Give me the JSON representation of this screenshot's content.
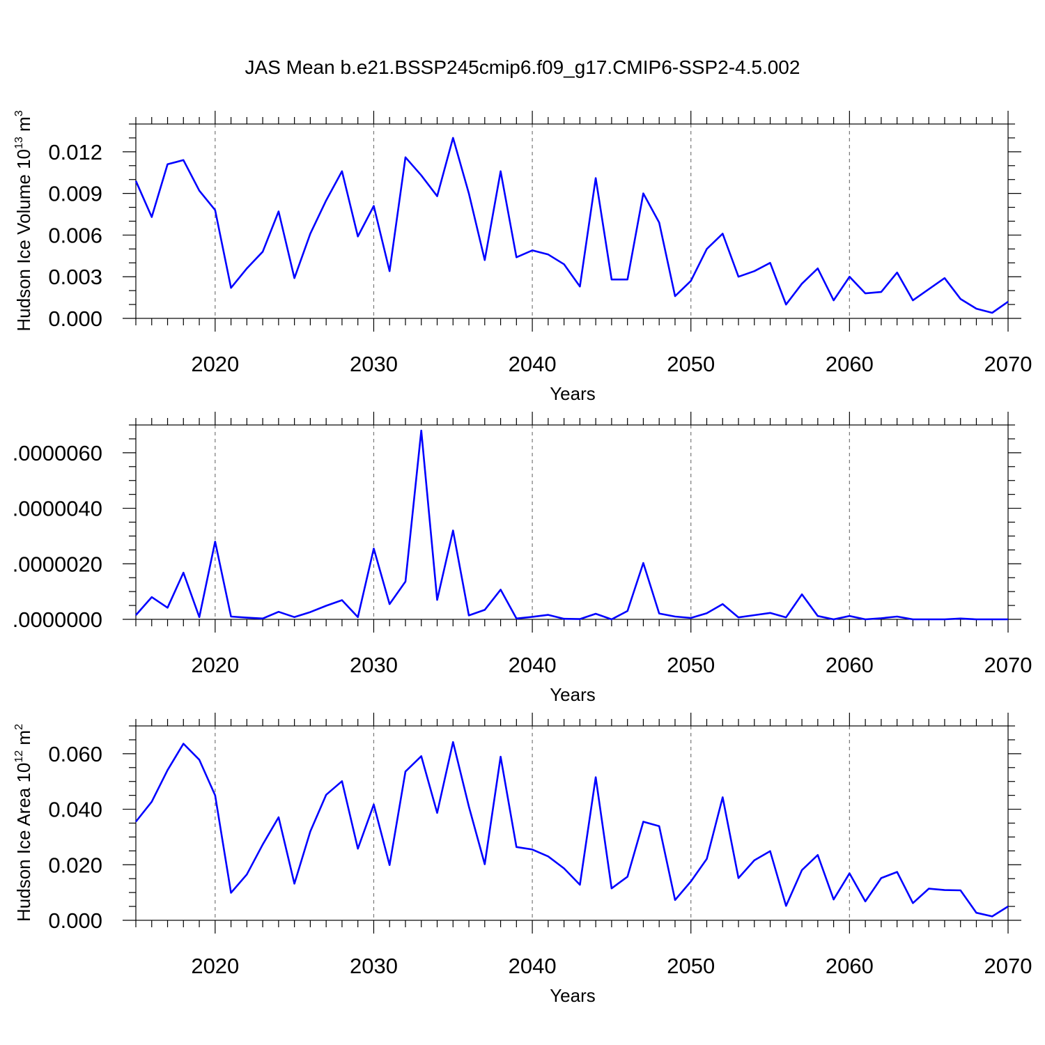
{
  "title": "JAS Mean b.e21.BSSP245cmip6.f09_g17.CMIP6-SSP2-4.5.002",
  "colors": {
    "line": "#0000ff",
    "axis": "#000000",
    "grid": "#777777"
  },
  "chart_data": [
    {
      "type": "line",
      "ylabel": {
        "main": "Hudson Ice Volume 10",
        "sup1": "13",
        "mid": " m",
        "sup2": "3"
      },
      "xlabel": "Years",
      "xlim": [
        2015,
        2070
      ],
      "ylim": [
        0.0,
        0.014
      ],
      "xticks": [
        2020,
        2030,
        2040,
        2050,
        2060,
        2070
      ],
      "yticks": [
        "0.000",
        "0.003",
        "0.006",
        "0.009",
        "0.012"
      ],
      "ytick_values": [
        0.0,
        0.003,
        0.006,
        0.009,
        0.012
      ],
      "ytick_minor_step": 0.001,
      "grid": "dashed vertical at major x ticks",
      "x": [
        2015,
        2016,
        2017,
        2018,
        2019,
        2020,
        2021,
        2022,
        2023,
        2024,
        2025,
        2026,
        2027,
        2028,
        2029,
        2030,
        2031,
        2032,
        2033,
        2034,
        2035,
        2036,
        2037,
        2038,
        2039,
        2040,
        2041,
        2042,
        2043,
        2044,
        2045,
        2046,
        2047,
        2048,
        2049,
        2050,
        2051,
        2052,
        2053,
        2054,
        2055,
        2056,
        2057,
        2058,
        2059,
        2060,
        2061,
        2062,
        2063,
        2064,
        2065,
        2066,
        2067,
        2068,
        2069,
        2070
      ],
      "values": [
        0.0099,
        0.0073,
        0.0111,
        0.0114,
        0.0092,
        0.0078,
        0.0022,
        0.0036,
        0.0048,
        0.0077,
        0.0029,
        0.0061,
        0.0085,
        0.0106,
        0.0059,
        0.0081,
        0.0034,
        0.0116,
        0.0103,
        0.0088,
        0.013,
        0.009,
        0.0042,
        0.0106,
        0.0044,
        0.0049,
        0.0046,
        0.0039,
        0.0023,
        0.0101,
        0.0028,
        0.0028,
        0.009,
        0.0069,
        0.0016,
        0.0027,
        0.005,
        0.0061,
        0.003,
        0.0034,
        0.004,
        0.001,
        0.0025,
        0.0036,
        0.0013,
        0.003,
        0.0018,
        0.0019,
        0.0033,
        0.0013,
        0.0021,
        0.0029,
        0.0014,
        0.0007,
        0.0004,
        0.0012
      ]
    },
    {
      "type": "line",
      "ylabel": null,
      "xlabel": "Years",
      "xlim": [
        2015,
        2070
      ],
      "ylim": [
        0.0,
        7e-06
      ],
      "xticks": [
        2020,
        2030,
        2040,
        2050,
        2060,
        2070
      ],
      "yticks": [
        ".0000000",
        ".0000020",
        ".0000040",
        ".0000060"
      ],
      "ytick_values": [
        0.0,
        2e-06,
        4e-06,
        6e-06
      ],
      "ytick_minor_step": 5e-07,
      "grid": "dashed vertical at major x ticks",
      "x": [
        2015,
        2016,
        2017,
        2018,
        2019,
        2020,
        2021,
        2022,
        2023,
        2024,
        2025,
        2026,
        2027,
        2028,
        2029,
        2030,
        2031,
        2032,
        2033,
        2034,
        2035,
        2036,
        2037,
        2038,
        2039,
        2040,
        2041,
        2042,
        2043,
        2044,
        2045,
        2046,
        2047,
        2048,
        2049,
        2050,
        2051,
        2052,
        2053,
        2054,
        2055,
        2056,
        2057,
        2058,
        2059,
        2060,
        2061,
        2062,
        2063,
        2064,
        2065,
        2066,
        2067,
        2068,
        2069,
        2070
      ],
      "values": [
        1.5e-07,
        8e-07,
        4.2e-07,
        1.68e-06,
        8e-08,
        2.8e-06,
        1e-07,
        6e-08,
        3e-08,
        2.7e-07,
        8e-08,
        2.6e-07,
        4.9e-07,
        6.9e-07,
        8e-08,
        2.55e-06,
        5.5e-07,
        1.36e-06,
        6.8e-06,
        7e-07,
        3.2e-06,
        1.4e-07,
        3.4e-07,
        1.07e-06,
        3e-08,
        9e-08,
        1.6e-07,
        2e-08,
        1e-08,
        2e-07,
        0.0,
        3e-07,
        2.03e-06,
        2.1e-07,
        1e-07,
        5e-08,
        2.2e-07,
        5.5e-07,
        7e-08,
        1.5e-07,
        2.3e-07,
        7e-08,
        9e-07,
        1.2e-07,
        0.0,
        1.2e-07,
        0.0,
        4e-08,
        1e-07,
        0.0,
        0.0,
        0.0,
        3e-08,
        0.0,
        0.0,
        0.0
      ]
    },
    {
      "type": "line",
      "ylabel": {
        "main": "Hudson Ice Area 10",
        "sup1": "12",
        "mid": " m",
        "sup2": "2"
      },
      "xlabel": "Years",
      "xlim": [
        2015,
        2070
      ],
      "ylim": [
        0.0,
        0.07
      ],
      "xticks": [
        2020,
        2030,
        2040,
        2050,
        2060,
        2070
      ],
      "yticks": [
        "0.000",
        "0.020",
        "0.040",
        "0.060"
      ],
      "ytick_values": [
        0.0,
        0.02,
        0.04,
        0.06
      ],
      "ytick_minor_step": 0.005,
      "grid": "dashed vertical at major x ticks",
      "x": [
        2015,
        2016,
        2017,
        2018,
        2019,
        2020,
        2021,
        2022,
        2023,
        2024,
        2025,
        2026,
        2027,
        2028,
        2029,
        2030,
        2031,
        2032,
        2033,
        2034,
        2035,
        2036,
        2037,
        2038,
        2039,
        2040,
        2041,
        2042,
        2043,
        2044,
        2045,
        2046,
        2047,
        2048,
        2049,
        2050,
        2051,
        2052,
        2053,
        2054,
        2055,
        2056,
        2057,
        2058,
        2059,
        2060,
        2061,
        2062,
        2063,
        2064,
        2065,
        2066,
        2067,
        2068,
        2069,
        2070
      ],
      "values": [
        0.0355,
        0.0427,
        0.0541,
        0.0636,
        0.0578,
        0.045,
        0.0099,
        0.0165,
        0.0273,
        0.0371,
        0.0132,
        0.032,
        0.0452,
        0.0501,
        0.0258,
        0.0417,
        0.0199,
        0.0536,
        0.0591,
        0.0387,
        0.0642,
        0.041,
        0.0202,
        0.0589,
        0.0264,
        0.0255,
        0.023,
        0.0187,
        0.0128,
        0.0515,
        0.0115,
        0.0157,
        0.0355,
        0.0339,
        0.0073,
        0.014,
        0.0221,
        0.0443,
        0.0152,
        0.0216,
        0.0249,
        0.0052,
        0.0181,
        0.0235,
        0.0075,
        0.0169,
        0.0068,
        0.0152,
        0.0174,
        0.0062,
        0.0114,
        0.0109,
        0.0108,
        0.0027,
        0.0014,
        0.005
      ]
    }
  ]
}
